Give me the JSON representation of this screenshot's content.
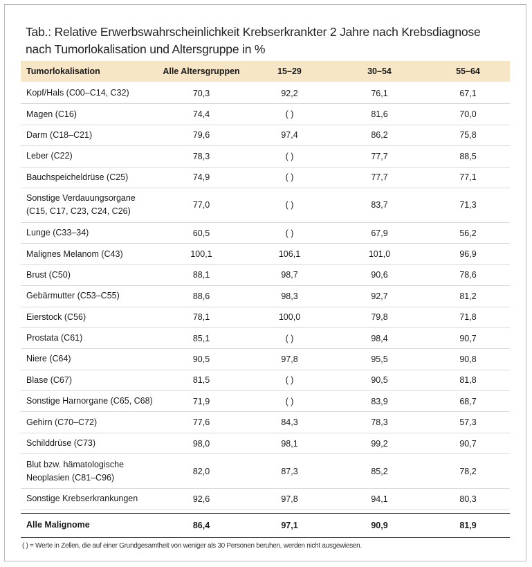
{
  "title_line1": "Tab.: Relative Erwerbswahrscheinlichkeit Krebserkrankter 2 Jahre nach Krebsdiagnose",
  "title_line2": "nach Tumorlokalisation und Altersgruppe in %",
  "header": {
    "col0": "Tumorlokalisation",
    "col1": "Alle Altersgruppen",
    "col2": "15–29",
    "col3": "30–54",
    "col4": "55–64"
  },
  "rows": [
    {
      "label": "Kopf/Hals (C00–C14, C32)",
      "v1": "70,3",
      "v2": "92,2",
      "v3": "76,1",
      "v4": "67,1"
    },
    {
      "label": "Magen (C16)",
      "v1": "74,4",
      "v2": "( )",
      "v3": "81,6",
      "v4": "70,0"
    },
    {
      "label": "Darm (C18–C21)",
      "v1": "79,6",
      "v2": "97,4",
      "v3": "86,2",
      "v4": "75,8"
    },
    {
      "label": "Leber (C22)",
      "v1": "78,3",
      "v2": "( )",
      "v3": "77,7",
      "v4": "88,5"
    },
    {
      "label": "Bauchspeicheldrüse (C25)",
      "v1": "74,9",
      "v2": "( )",
      "v3": "77,7",
      "v4": "77,1"
    },
    {
      "label": "Sonstige Verdauungsorgane",
      "label2": "(C15, C17, C23, C24, C26)",
      "v1": "77,0",
      "v2": "( )",
      "v3": "83,7",
      "v4": "71,3"
    },
    {
      "label": "Lunge (C33–34)",
      "v1": "60,5",
      "v2": "( )",
      "v3": "67,9",
      "v4": "56,2"
    },
    {
      "label": "Malignes Melanom (C43)",
      "v1": "100,1",
      "v2": "106,1",
      "v3": "101,0",
      "v4": "96,9"
    },
    {
      "label": "Brust (C50)",
      "v1": "88,1",
      "v2": "98,7",
      "v3": "90,6",
      "v4": "78,6"
    },
    {
      "label": "Gebärmutter (C53–C55)",
      "v1": "88,6",
      "v2": "98,3",
      "v3": "92,7",
      "v4": "81,2"
    },
    {
      "label": "Eierstock (C56)",
      "v1": "78,1",
      "v2": "100,0",
      "v3": "79,8",
      "v4": "71,8"
    },
    {
      "label": "Prostata (C61)",
      "v1": "85,1",
      "v2": "( )",
      "v3": "98,4",
      "v4": "90,7"
    },
    {
      "label": "Niere (C64)",
      "v1": "90,5",
      "v2": "97,8",
      "v3": "95,5",
      "v4": "90,8"
    },
    {
      "label": "Blase (C67)",
      "v1": "81,5",
      "v2": "( )",
      "v3": "90,5",
      "v4": "81,8"
    },
    {
      "label": "Sonstige Harnorgane (C65, C68)",
      "v1": "71,9",
      "v2": "( )",
      "v3": "83,9",
      "v4": "68,7"
    },
    {
      "label": "Gehirn (C70–C72)",
      "v1": "77,6",
      "v2": "84,3",
      "v3": "78,3",
      "v4": "57,3"
    },
    {
      "label": "Schilddrüse (C73)",
      "v1": "98,0",
      "v2": "98,1",
      "v3": "99,2",
      "v4": "90,7"
    },
    {
      "label": "Blut bzw. hämatologische",
      "label2": "Neoplasien (C81–C96)",
      "v1": "82,0",
      "v2": "87,3",
      "v3": "85,2",
      "v4": "78,2"
    },
    {
      "label": "Sonstige Krebserkrankungen",
      "v1": "92,6",
      "v2": "97,8",
      "v3": "94,1",
      "v4": "80,3"
    }
  ],
  "total": {
    "label": "Alle Malignome",
    "v1": "86,4",
    "v2": "97,1",
    "v3": "90,9",
    "v4": "81,9"
  },
  "footnote": "( ) = Werte in Zellen, die auf einer Grundgesamtheit von weniger als 30 Personen beruhen, werden nicht ausgewiesen."
}
